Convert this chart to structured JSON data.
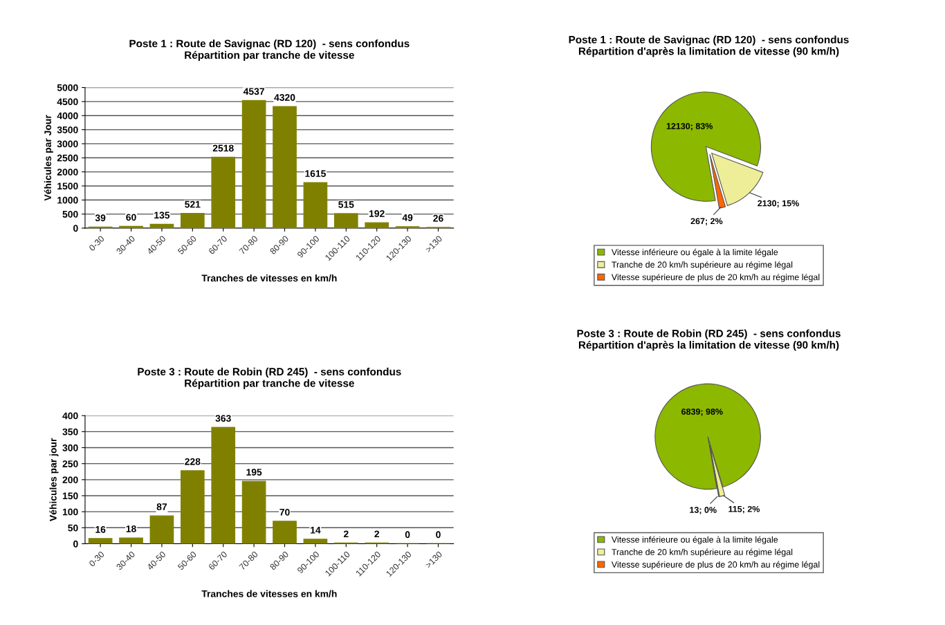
{
  "chart_data": [
    {
      "type": "bar",
      "title": "Poste 1 : Route de Savignac (RD 120)  - sens confondus\nRépartition par tranche de vitesse",
      "xlabel": "Tranches de vitesses en km/h",
      "ylabel": "Véhicules par Jour",
      "categories": [
        "0-30",
        "30-40",
        "40-50",
        "50-60",
        "60-70",
        "70-80",
        "80-90",
        "90-100",
        "100-110",
        "110-120",
        "120-130",
        ">130"
      ],
      "values": [
        39,
        60,
        135,
        521,
        2518,
        4537,
        4320,
        1615,
        515,
        192,
        49,
        26
      ],
      "color": "#808000",
      "ylim": [
        0,
        5000
      ],
      "yticks": [
        0,
        500,
        1000,
        1500,
        2000,
        2500,
        3000,
        3500,
        4000,
        4500,
        5000
      ],
      "grid": "y",
      "data_labels": true
    },
    {
      "type": "pie",
      "title": "Poste 1 : Route de Savignac (RD 120)  - sens confondus\nRépartition d'après la limitation de vitesse (90 km/h)",
      "categories": [
        "Vitesse inférieure ou égale à la limite légale",
        "Tranche de 20 km/h supérieure au régime légal",
        "Vitesse supérieure de plus de 20 km/h au régime légal"
      ],
      "values": [
        12130,
        2130,
        267
      ],
      "value_labels": [
        "12130; 83%",
        "2130; 15%",
        "267; 2%"
      ],
      "colors": [
        "#8cb800",
        "#eeee99",
        "#ff6600"
      ],
      "legend": "bottom"
    },
    {
      "type": "bar",
      "title": "Poste 3 : Route de Robin (RD 245)  - sens confondus\nRépartition par tranche de vitesse",
      "xlabel": "Tranches de vitesses en km/h",
      "ylabel": "Véhicules par jour",
      "categories": [
        "0-30",
        "30-40",
        "40-50",
        "50-60",
        "60-70",
        "70-80",
        "80-90",
        "90-100",
        "100-110",
        "110-120",
        "120-130",
        ">130"
      ],
      "values": [
        16,
        18,
        87,
        228,
        363,
        195,
        70,
        14,
        2,
        2,
        0,
        0
      ],
      "color": "#808000",
      "ylim": [
        0,
        400
      ],
      "yticks": [
        0,
        50,
        100,
        150,
        200,
        250,
        300,
        350,
        400
      ],
      "grid": "y",
      "data_labels": true
    },
    {
      "type": "pie",
      "title": "Poste 3 : Route de Robin (RD 245)  - sens confondus\nRépartition d'après la limitation de vitesse (90 km/h)",
      "categories": [
        "Vitesse inférieure ou égale à la limite légale",
        "Tranche de 20 km/h supérieure au régime légal",
        "Vitesse supérieure de plus de 20 km/h au régime légal"
      ],
      "values": [
        6839,
        115,
        13
      ],
      "value_labels": [
        "6839; 98%",
        "115; 2%",
        "13; 0%"
      ],
      "colors": [
        "#8cb800",
        "#eeee99",
        "#ff6600"
      ],
      "legend": "bottom"
    }
  ]
}
